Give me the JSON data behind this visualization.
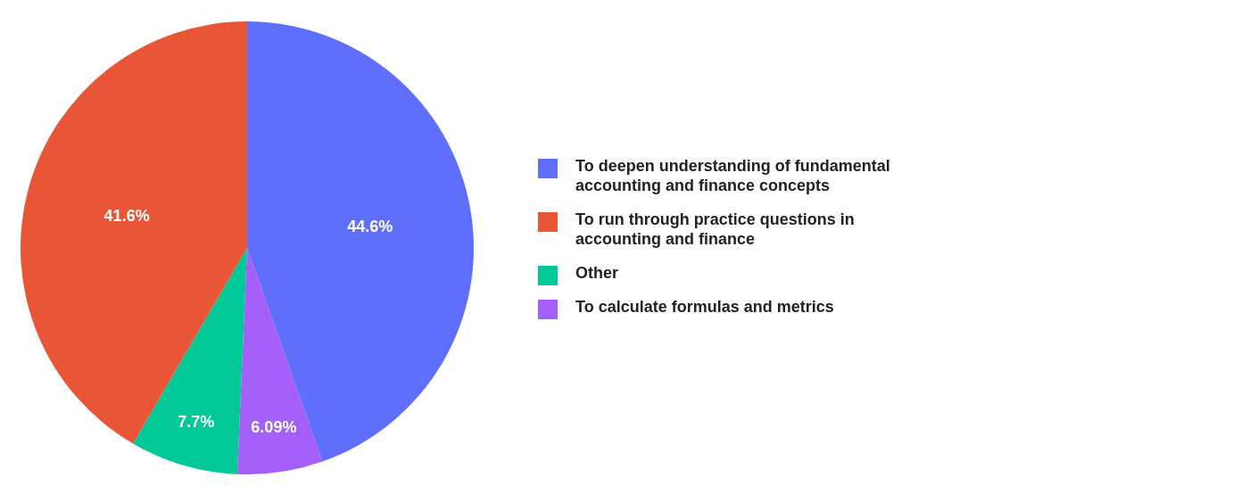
{
  "chart_data": {
    "type": "pie",
    "categories": [
      "To deepen understanding of fundamental accounting and finance concepts",
      "To calculate formulas and metrics",
      "Other",
      "To run through practice questions in accounting and finance"
    ],
    "values": [
      44.6,
      6.09,
      7.7,
      41.6
    ],
    "colors": [
      "#5f6ffb",
      "#a35ff8",
      "#00c896",
      "#e95637"
    ],
    "value_labels": [
      "44.6%",
      "6.09%",
      "7.7%",
      "41.6%"
    ],
    "legend": "right"
  }
}
